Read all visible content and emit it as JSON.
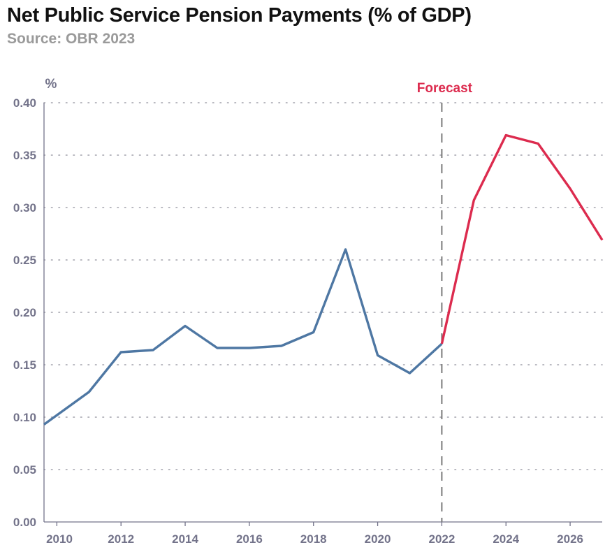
{
  "header": {
    "title": "Net Public Service Pension Payments (% of GDP)",
    "subtitle": "Source: OBR 2023"
  },
  "colors": {
    "actual": "#4e77a3",
    "forecast": "#dc2b4e",
    "axis": "#73738a",
    "grid": "#a0a0aa",
    "divider": "#7a7a7a"
  },
  "chart_data": {
    "type": "line",
    "title": "Net Public Service Pension Payments (% of GDP)",
    "subtitle": "Source: OBR 2023",
    "ylabel": "%",
    "xlabel": "",
    "xlim": [
      2009.6,
      2027.0
    ],
    "ylim": [
      0.0,
      0.4
    ],
    "yticks": [
      "0.00",
      "0.05",
      "0.10",
      "0.15",
      "0.20",
      "0.25",
      "0.30",
      "0.35",
      "0.40"
    ],
    "xticks": [
      "2010",
      "2012",
      "2014",
      "2016",
      "2018",
      "2020",
      "2022",
      "2024",
      "2026"
    ],
    "grid": "horizontal dotted",
    "forecast_start": 2022,
    "forecast_label": "Forecast",
    "series": [
      {
        "kind": "actual",
        "x": [
          2009.6,
          2011,
          2012,
          2013,
          2014,
          2015,
          2016,
          2017,
          2018,
          2019,
          2020,
          2021,
          2022
        ],
        "y": [
          0.093,
          0.124,
          0.162,
          0.164,
          0.187,
          0.166,
          0.166,
          0.168,
          0.181,
          0.26,
          0.159,
          0.142,
          0.17
        ]
      },
      {
        "kind": "forecast",
        "x": [
          2022,
          2023,
          2024,
          2025,
          2026,
          2027
        ],
        "y": [
          0.17,
          0.307,
          0.369,
          0.361,
          0.318,
          0.269
        ]
      }
    ]
  }
}
